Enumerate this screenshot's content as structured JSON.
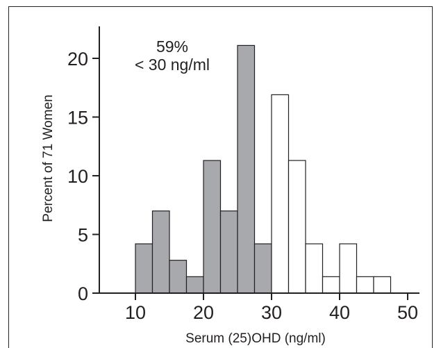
{
  "chart_data": {
    "type": "bar",
    "title": "",
    "xlabel": "Serum (25)OHD (ng/ml)",
    "ylabel": "Percent of 71 Women",
    "xlim": [
      5,
      52.5
    ],
    "ylim": [
      0,
      22.5
    ],
    "bin_width": 2.5,
    "x_ticks": [
      "10",
      "20",
      "30",
      "40",
      "50"
    ],
    "y_ticks": [
      "0",
      "5",
      "10",
      "15",
      "20"
    ],
    "annotation": [
      "59%",
      "< 30 ng/ml"
    ],
    "series": [
      {
        "fill": "#a7a9ac",
        "bins": [
          {
            "start": 10,
            "end": 12.5,
            "value": 4.2
          },
          {
            "start": 12.5,
            "end": 15,
            "value": 7.0
          },
          {
            "start": 15,
            "end": 17.5,
            "value": 2.8
          },
          {
            "start": 17.5,
            "end": 20,
            "value": 1.4
          },
          {
            "start": 20,
            "end": 22.5,
            "value": 11.3
          },
          {
            "start": 22.5,
            "end": 25,
            "value": 7.0
          },
          {
            "start": 25,
            "end": 27.5,
            "value": 21.1
          },
          {
            "start": 27.5,
            "end": 30,
            "value": 4.2
          }
        ]
      },
      {
        "fill": "#ffffff",
        "bins": [
          {
            "start": 30,
            "end": 32.5,
            "value": 16.9
          },
          {
            "start": 32.5,
            "end": 35,
            "value": 11.3
          },
          {
            "start": 35,
            "end": 37.5,
            "value": 4.2
          },
          {
            "start": 37.5,
            "end": 40,
            "value": 1.4
          },
          {
            "start": 40,
            "end": 42.5,
            "value": 4.2
          },
          {
            "start": 42.5,
            "end": 45,
            "value": 1.4
          },
          {
            "start": 45,
            "end": 47.5,
            "value": 1.4
          }
        ]
      }
    ]
  }
}
